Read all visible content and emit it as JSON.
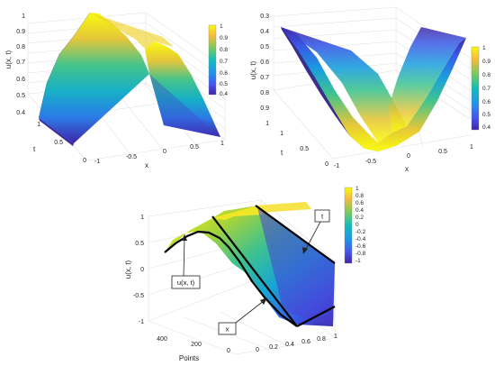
{
  "chart_data": [
    {
      "type": "surface",
      "zlabel": "u(x, t)",
      "xlabel": "x",
      "ylabel": "t",
      "x_ticks": [
        "-1",
        "-0.5",
        "0",
        "0.5",
        "1"
      ],
      "t_ticks": [
        "0",
        "0.5",
        "1"
      ],
      "z_ticks": [
        "0.4",
        "0.5",
        "0.6",
        "0.7",
        "0.8",
        "0.9",
        "1"
      ],
      "colorbar_ticks": [
        "0.4",
        "0.5",
        "0.6",
        "0.7",
        "0.8",
        "0.9",
        "1"
      ],
      "xlim": [
        -1,
        1
      ],
      "tlim": [
        0,
        1
      ],
      "zlim": [
        0.35,
        1
      ],
      "profile_x": [
        -1,
        -0.75,
        -0.5,
        -0.25,
        0,
        0.25,
        0.5,
        0.75,
        1
      ],
      "profile_u": [
        0.37,
        0.55,
        0.8,
        0.96,
        1.0,
        0.96,
        0.8,
        0.55,
        0.37
      ],
      "colormap": "parula"
    },
    {
      "type": "surface",
      "zlabel": "u(x, t)",
      "xlabel": "x",
      "ylabel": "t",
      "x_ticks": [
        "-1",
        "-0.5",
        "0",
        "0.5",
        "1"
      ],
      "t_ticks": [
        "0",
        "0.5",
        "1"
      ],
      "z_ticks": [
        "1",
        "0.9",
        "0.8",
        "0.7",
        "0.6",
        "0.5",
        "0.4",
        "0.3"
      ],
      "colorbar_ticks": [
        "0.4",
        "0.5",
        "0.6",
        "0.7",
        "0.8",
        "0.9",
        "1"
      ],
      "xlim": [
        -1,
        1
      ],
      "tlim": [
        0,
        1
      ],
      "zlim": [
        0.3,
        1
      ],
      "z_reversed": true,
      "profile_x": [
        -1,
        -0.75,
        -0.5,
        -0.25,
        0,
        0.25,
        0.5,
        0.75,
        1
      ],
      "profile_u": [
        0.37,
        0.55,
        0.8,
        0.96,
        1.0,
        0.96,
        0.8,
        0.55,
        0.37
      ],
      "colormap": "parula"
    },
    {
      "type": "surface",
      "zlabel": "u(x, t)",
      "xlabel": "Points",
      "x_ticks": [
        "0",
        "200",
        "400"
      ],
      "t_ticks": [
        "0",
        "0.2",
        "0.4",
        "0.6",
        "0.8",
        "1"
      ],
      "z_ticks": [
        "-1",
        "-0.5",
        "0",
        "0.5",
        "1"
      ],
      "colorbar_ticks": [
        "1",
        "0.8",
        "0.6",
        "0.4",
        "0.2",
        "0",
        "-0.2",
        "-0.4",
        "-0.6",
        "-0.8",
        "-1"
      ],
      "zlim": [
        -1,
        1
      ],
      "colormap": "parula",
      "annotations": [
        "u(x, t)",
        "x",
        "t"
      ]
    }
  ]
}
